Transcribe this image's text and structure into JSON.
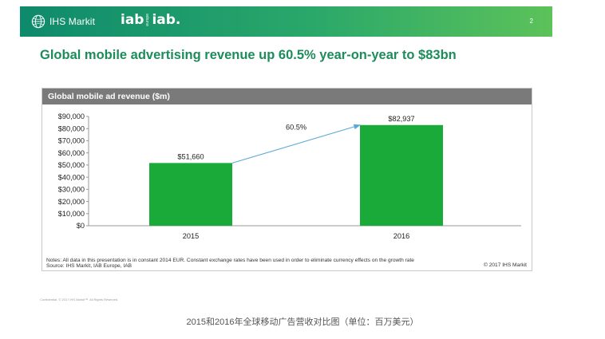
{
  "header": {
    "brand": "IHS Markit",
    "iab_left": "iab",
    "iab_europe": "europe",
    "iab_right": "iab.",
    "page_number": "2",
    "colors": {
      "band_start": "#0e8a6c",
      "band_end": "#5cc25a"
    }
  },
  "slide_title": "Global mobile advertising revenue up 60.5% year-on-year to $83bn",
  "chart_data": {
    "type": "bar",
    "title": "Global mobile ad revenue ($m)",
    "categories": [
      "2015",
      "2016"
    ],
    "values": [
      51660,
      82937
    ],
    "value_labels": [
      "$51,660",
      "$82,937"
    ],
    "ylim": [
      0,
      90000
    ],
    "yticks": [
      0,
      10000,
      20000,
      30000,
      40000,
      50000,
      60000,
      70000,
      80000,
      90000
    ],
    "ytick_labels": [
      "$0",
      "$10,000",
      "$20,000",
      "$30,000",
      "$40,000",
      "$50,000",
      "$60,000",
      "$70,000",
      "$80,000",
      "$90,000"
    ],
    "annotation": "60.5%",
    "bar_color": "#1aaa3a",
    "arrow_color": "#5aa9d6",
    "grid": false
  },
  "notes": "Notes: All data in this presentation is in constant 2014 EUR. Constant exchange rates have been used in order to eliminate currency effects on the growth rate",
  "source": "Source: IHS Markit, IAB Europe, IAB",
  "copyright": "© 2017 IHS Markit",
  "confidential": "Confidential. © 2017 IHS Markit™. All Rights Reserved.",
  "caption": "2015和2016年全球移动广告营收对比图（单位：百万美元）"
}
